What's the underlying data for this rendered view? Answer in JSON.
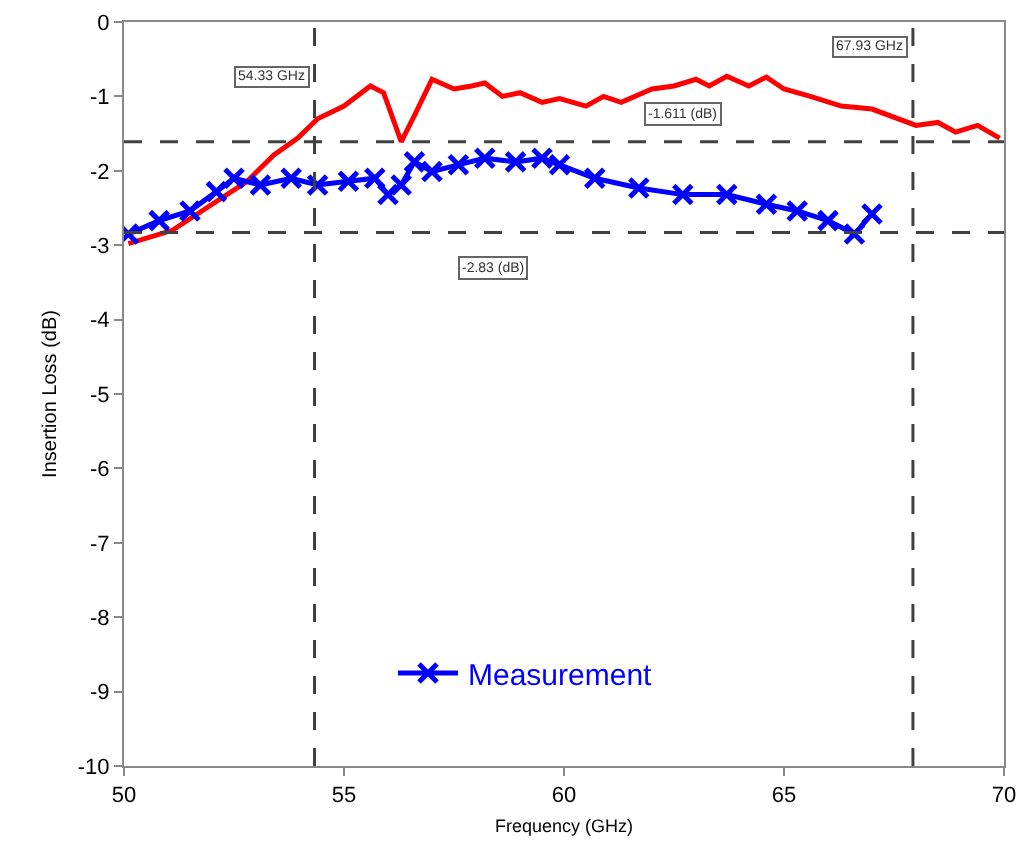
{
  "chart_data": {
    "type": "line",
    "xlabel": "Frequency (GHz)",
    "ylabel": "Insertion Loss (dB)",
    "xlim": [
      50,
      70
    ],
    "xticks": [
      50,
      55,
      60,
      65,
      70
    ],
    "ylim": [
      -10,
      0
    ],
    "yticks": [
      -10,
      -9,
      -8,
      -7,
      -6,
      -5,
      -4,
      -3,
      -2,
      -1,
      0
    ],
    "grid": false,
    "legend": "bottom left",
    "series": [
      {
        "color": "#ff0000",
        "marker": "none",
        "x": [
          50.1,
          51.1,
          51.9,
          52.8,
          53.4,
          53.95,
          54.4,
          55.0,
          55.6,
          55.9,
          56.3,
          56.6,
          57.0,
          57.5,
          57.9,
          58.2,
          58.6,
          59.0,
          59.5,
          59.9,
          60.5,
          60.9,
          61.3,
          62.0,
          62.5,
          63.0,
          63.3,
          63.7,
          64.2,
          64.6,
          65.0,
          65.6,
          66.3,
          67.0,
          68.0,
          68.5,
          68.9,
          69.4,
          69.9
        ],
        "values": [
          -2.98,
          -2.8,
          -2.49,
          -2.14,
          -1.79,
          -1.56,
          -1.3,
          -1.13,
          -0.86,
          -0.95,
          -1.61,
          -1.26,
          -0.77,
          -0.9,
          -0.86,
          -0.82,
          -1.0,
          -0.95,
          -1.08,
          -1.03,
          -1.13,
          -1.0,
          -1.08,
          -0.9,
          -0.86,
          -0.77,
          -0.86,
          -0.73,
          -0.86,
          -0.74,
          -0.9,
          -1.0,
          -1.13,
          -1.17,
          -1.39,
          -1.35,
          -1.48,
          -1.39,
          -1.56
        ]
      },
      {
        "name": "Measurement",
        "color": "#0000ff",
        "marker": "cross",
        "x": [
          50.1,
          50.8,
          51.5,
          52.1,
          52.5,
          53.1,
          53.8,
          54.4,
          55.1,
          55.7,
          56.0,
          56.3,
          56.6,
          57.0,
          57.6,
          58.2,
          58.9,
          59.5,
          59.9,
          60.7,
          61.7,
          62.7,
          63.7,
          64.6,
          65.3,
          66.0,
          66.6,
          67.0
        ],
        "values": [
          -2.85,
          -2.67,
          -2.54,
          -2.28,
          -2.1,
          -2.19,
          -2.1,
          -2.19,
          -2.14,
          -2.1,
          -2.32,
          -2.19,
          -1.88,
          -2.01,
          -1.92,
          -1.83,
          -1.88,
          -1.83,
          -1.92,
          -2.1,
          -2.23,
          -2.32,
          -2.32,
          -2.45,
          -2.54,
          -2.67,
          -2.85,
          -2.58
        ]
      }
    ],
    "ref_lines": [
      {
        "axis": "x",
        "value": 54.33,
        "label": "54.33 GHz"
      },
      {
        "axis": "x",
        "value": 67.93,
        "label": "67.93 GHz"
      },
      {
        "axis": "y",
        "value": -1.611,
        "label": "-1.611 (dB)"
      },
      {
        "axis": "y",
        "value": -2.83,
        "label": "-2.83 (dB)"
      }
    ]
  }
}
